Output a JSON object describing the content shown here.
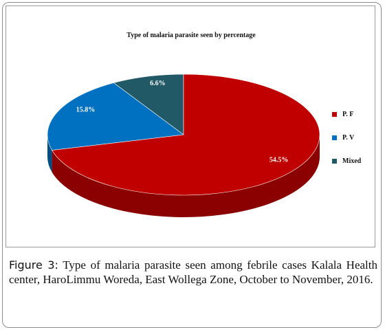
{
  "chart_data": {
    "type": "pie",
    "title": "Type of malaria parasite seen by percentage",
    "categories": [
      "P. F",
      "P. V",
      "Mixed"
    ],
    "values": [
      54.5,
      15.8,
      6.6
    ],
    "data_labels": [
      "54.5%",
      "15.8%",
      "6.6%"
    ],
    "colors": [
      "#c00000",
      "#0070c0",
      "#215967"
    ],
    "side_colors": [
      "#8b0000",
      "#004d86",
      "#163c46"
    ],
    "legend_position": "right",
    "style": "3d"
  },
  "caption": {
    "label": "Figure 3:",
    "text": " Type of malaria parasite seen among febrile cases Kalala Health center, HaroLimmu Woreda, East Wollega Zone, October to November, 2016."
  }
}
